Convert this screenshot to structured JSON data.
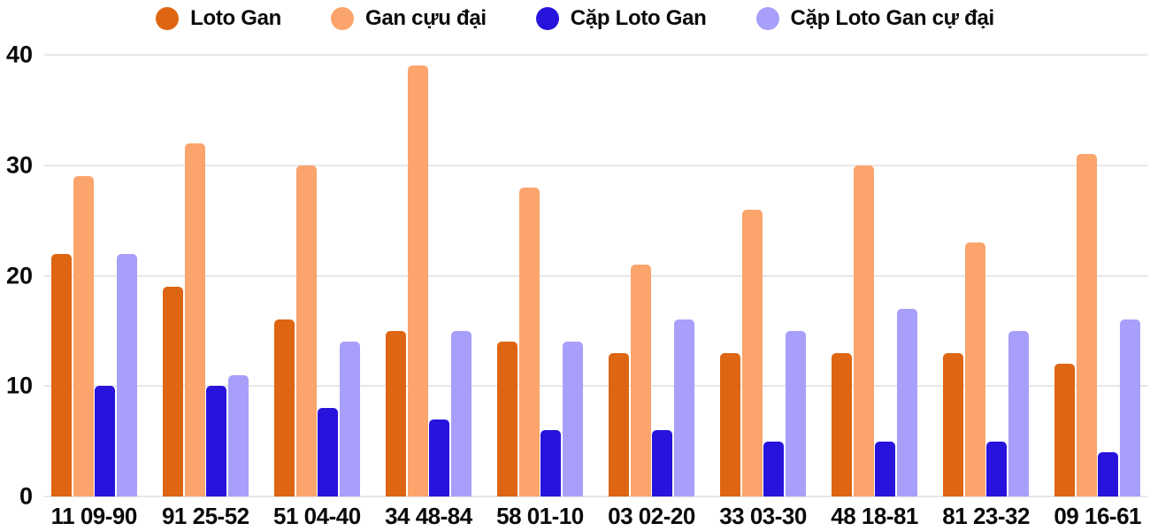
{
  "colors": {
    "background": "#ffffff",
    "grid_line": "#e7e7e7",
    "text": "#0a0a0a"
  },
  "chart_data": {
    "type": "bar",
    "categories": [
      "11 09-90",
      "91 25-52",
      "51 04-40",
      "34 48-84",
      "58 01-10",
      "03 02-20",
      "33 03-30",
      "48 18-81",
      "81 23-32",
      "09 16-61"
    ],
    "series": [
      {
        "name": "Loto Gan",
        "slug": "loto-gan",
        "color": "#de6511",
        "values": [
          22,
          19,
          16,
          15,
          14,
          13,
          13,
          13,
          13,
          12
        ]
      },
      {
        "name": "Gan cựu đại",
        "slug": "gan-cuu-dai",
        "color": "#fba46c",
        "values": [
          29,
          32,
          30,
          39,
          28,
          21,
          26,
          30,
          23,
          31
        ]
      },
      {
        "name": "Cặp Loto Gan",
        "slug": "cap-loto-gan",
        "color": "#2813dc",
        "values": [
          10,
          10,
          8,
          7,
          6,
          6,
          5,
          5,
          5,
          4
        ]
      },
      {
        "name": "Cặp Loto Gan cự đại",
        "slug": "cap-loto-gan-cu-dai",
        "color": "#a89ffa",
        "values": [
          22,
          11,
          14,
          15,
          14,
          16,
          15,
          17,
          15,
          16
        ]
      }
    ],
    "ylim": [
      0,
      40
    ],
    "yticks": [
      0,
      10,
      20,
      30,
      40
    ],
    "grid": true,
    "legend_position": "top"
  }
}
